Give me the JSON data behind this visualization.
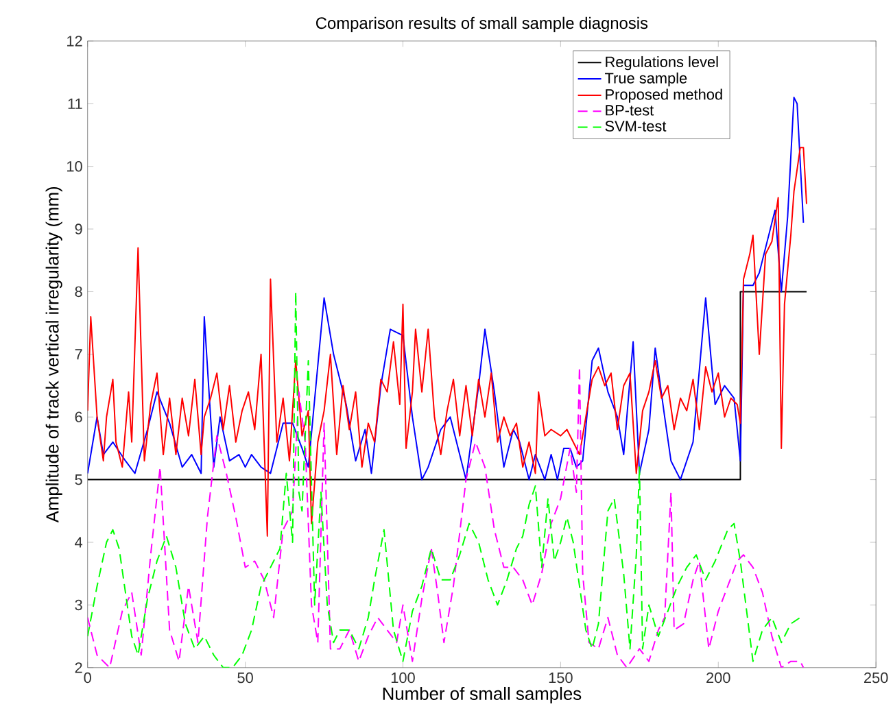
{
  "chart_data": {
    "type": "line",
    "title": "Comparison results of small sample diagnosis",
    "xlabel": "Number of small samples",
    "ylabel": "Amplitude of track vertical irregularity (mm)",
    "xlim": [
      0,
      250
    ],
    "ylim": [
      2,
      12
    ],
    "xticks": [
      0,
      50,
      100,
      150,
      200,
      250
    ],
    "yticks": [
      2,
      3,
      4,
      5,
      6,
      7,
      8,
      9,
      10,
      11,
      12
    ],
    "grid": false,
    "legend": "top right",
    "marker": "none",
    "series": [
      {
        "name": "Regulations level",
        "color": "#000000",
        "line_style": "solid",
        "x": [
          0,
          207,
          207,
          228
        ],
        "values": [
          5,
          5,
          8,
          8
        ]
      },
      {
        "name": "True sample",
        "color": "#0000ff",
        "line_style": "solid",
        "x": [
          0,
          3,
          5,
          8,
          12,
          15,
          19,
          22,
          26,
          30,
          33,
          36,
          37,
          40,
          42,
          45,
          48,
          50,
          52,
          55,
          58,
          62,
          65,
          68,
          70,
          75,
          78,
          82,
          85,
          88,
          90,
          93,
          96,
          100,
          103,
          106,
          108,
          112,
          115,
          118,
          120,
          124,
          126,
          129,
          132,
          135,
          137,
          140,
          142,
          145,
          147,
          149,
          151,
          153,
          155,
          157,
          160,
          162,
          165,
          168,
          170,
          173,
          175,
          178,
          180,
          183,
          185,
          188,
          192,
          196,
          199,
          202,
          205,
          207,
          208,
          211,
          213,
          218,
          220,
          222,
          224,
          225,
          227
        ],
        "values": [
          5.1,
          6.0,
          5.4,
          5.6,
          5.3,
          5.1,
          5.8,
          6.4,
          5.9,
          5.2,
          5.4,
          5.1,
          7.6,
          5.2,
          6.0,
          5.3,
          5.4,
          5.2,
          5.4,
          5.2,
          5.1,
          5.9,
          5.9,
          5.5,
          5.2,
          7.9,
          7.0,
          6.2,
          5.3,
          5.8,
          5.1,
          6.5,
          7.4,
          7.3,
          6.0,
          5.0,
          5.2,
          5.8,
          6.0,
          5.4,
          5.0,
          6.5,
          7.4,
          6.4,
          5.2,
          5.8,
          5.6,
          5.0,
          5.4,
          5.0,
          5.4,
          5.0,
          5.5,
          5.5,
          5.2,
          5.3,
          6.9,
          7.1,
          6.4,
          6.0,
          5.4,
          7.2,
          5.1,
          5.8,
          7.1,
          6.0,
          5.3,
          5.0,
          5.6,
          7.9,
          6.2,
          6.5,
          6.3,
          5.3,
          8.1,
          8.1,
          8.3,
          9.3,
          8.0,
          9.2,
          11.1,
          11.0,
          9.1
        ]
      },
      {
        "name": "Proposed method",
        "color": "#ff0000",
        "line_style": "solid",
        "x": [
          0,
          1,
          3,
          5,
          6,
          8,
          9,
          11,
          13,
          14,
          16,
          18,
          20,
          22,
          24,
          26,
          28,
          30,
          32,
          34,
          36,
          37,
          39,
          41,
          43,
          45,
          47,
          49,
          51,
          53,
          55,
          57,
          58,
          60,
          62,
          64,
          66,
          68,
          70,
          71,
          73,
          75,
          77,
          79,
          81,
          83,
          85,
          87,
          89,
          91,
          93,
          95,
          97,
          99,
          100,
          101,
          103,
          104,
          106,
          108,
          110,
          112,
          114,
          116,
          118,
          120,
          122,
          124,
          126,
          128,
          130,
          132,
          134,
          136,
          138,
          140,
          142,
          143,
          145,
          147,
          150,
          152,
          154,
          156,
          158,
          160,
          162,
          164,
          166,
          168,
          170,
          172,
          174,
          176,
          178,
          180,
          182,
          184,
          186,
          188,
          190,
          192,
          194,
          196,
          198,
          200,
          202,
          204,
          206,
          207,
          208,
          210,
          211,
          213,
          215,
          217,
          219,
          220,
          221,
          223,
          224,
          226,
          227,
          228
        ],
        "values": [
          6.1,
          7.6,
          6.0,
          5.3,
          6.0,
          6.6,
          5.6,
          5.2,
          6.4,
          5.6,
          8.7,
          5.3,
          6.2,
          6.7,
          5.4,
          6.3,
          5.4,
          6.3,
          5.7,
          6.6,
          5.4,
          6.0,
          6.3,
          6.7,
          5.8,
          6.5,
          5.6,
          6.1,
          6.4,
          5.8,
          7.0,
          4.1,
          8.2,
          5.6,
          6.3,
          5.3,
          6.9,
          5.7,
          6.1,
          4.3,
          5.6,
          6.1,
          7.0,
          5.4,
          6.5,
          5.8,
          6.4,
          5.2,
          5.9,
          5.6,
          6.6,
          6.4,
          7.2,
          6.2,
          7.8,
          5.5,
          6.4,
          7.4,
          6.4,
          7.4,
          6.0,
          5.4,
          6.1,
          6.6,
          5.7,
          6.5,
          5.7,
          6.6,
          6.0,
          6.7,
          5.6,
          6.0,
          5.7,
          5.9,
          5.2,
          5.6,
          5.1,
          6.4,
          5.7,
          5.8,
          5.7,
          5.8,
          5.6,
          5.4,
          6.0,
          6.6,
          6.8,
          6.5,
          6.7,
          5.8,
          6.5,
          6.7,
          5.1,
          6.1,
          6.4,
          6.9,
          6.3,
          6.5,
          5.8,
          6.3,
          6.1,
          6.6,
          5.8,
          6.8,
          6.4,
          6.7,
          6.0,
          6.3,
          6.2,
          5.9,
          8.2,
          8.6,
          8.9,
          7.0,
          8.6,
          8.8,
          9.5,
          5.5,
          7.8,
          8.9,
          9.6,
          10.3,
          10.3,
          9.4
        ]
      },
      {
        "name": "BP-test",
        "color": "#ff00ff",
        "line_style": "dashed",
        "x": [
          0,
          3,
          7,
          11,
          14,
          17,
          20,
          23,
          26,
          29,
          32,
          35,
          38,
          41,
          44,
          47,
          50,
          53,
          56,
          59,
          62,
          65,
          67,
          69,
          71,
          73,
          75,
          77,
          80,
          83,
          86,
          89,
          92,
          95,
          98,
          100,
          103,
          106,
          109,
          111,
          113,
          116,
          120,
          123,
          126,
          129,
          132,
          135,
          138,
          141,
          144,
          147,
          150,
          153,
          155,
          156,
          157,
          159,
          162,
          165,
          168,
          171,
          175,
          178,
          181,
          183,
          185,
          186,
          189,
          192,
          194,
          197,
          200,
          203,
          206,
          208,
          211,
          214,
          217,
          220,
          223,
          226,
          227
        ],
        "values": [
          2.8,
          2.2,
          2.0,
          2.9,
          3.2,
          2.2,
          3.8,
          5.2,
          2.6,
          2.1,
          3.3,
          2.4,
          4.4,
          5.7,
          5.1,
          4.4,
          3.6,
          3.7,
          3.4,
          2.8,
          4.2,
          4.5,
          6.4,
          5.6,
          3.0,
          2.4,
          5.9,
          2.3,
          2.3,
          2.6,
          2.1,
          2.5,
          2.8,
          2.6,
          2.4,
          3.0,
          2.1,
          3.1,
          3.9,
          3.2,
          2.4,
          3.3,
          5.0,
          5.6,
          5.2,
          4.2,
          3.6,
          3.6,
          3.4,
          3.0,
          3.5,
          4.3,
          4.7,
          5.5,
          4.8,
          6.8,
          3.5,
          2.4,
          2.3,
          2.8,
          2.2,
          2.0,
          2.3,
          2.1,
          2.6,
          2.8,
          4.8,
          2.6,
          2.7,
          3.4,
          3.7,
          2.3,
          2.9,
          3.3,
          3.7,
          3.8,
          3.6,
          3.2,
          2.5,
          2.0,
          2.1,
          2.1,
          2.0
        ]
      },
      {
        "name": "SVM-test",
        "color": "#00ff00",
        "line_style": "dashed",
        "x": [
          0,
          3,
          6,
          8,
          10,
          12,
          14,
          16,
          19,
          22,
          25,
          28,
          31,
          34,
          37,
          40,
          43,
          46,
          49,
          52,
          55,
          58,
          61,
          63,
          65,
          66,
          67,
          68,
          70,
          72,
          74,
          76,
          78,
          80,
          83,
          86,
          89,
          91,
          94,
          97,
          100,
          103,
          106,
          109,
          112,
          115,
          118,
          121,
          124,
          127,
          130,
          133,
          136,
          138,
          140,
          142,
          144,
          146,
          148,
          150,
          152,
          154,
          156,
          158,
          160,
          162,
          165,
          167,
          170,
          172,
          174,
          175,
          176,
          178,
          181,
          184,
          187,
          190,
          193,
          196,
          199,
          203,
          205,
          207,
          209,
          211,
          214,
          217,
          220,
          223,
          226
        ],
        "values": [
          2.5,
          3.3,
          4.0,
          4.2,
          3.9,
          3.2,
          2.5,
          2.2,
          3.1,
          3.7,
          4.1,
          3.6,
          2.7,
          2.3,
          2.5,
          2.2,
          2.0,
          2.0,
          2.2,
          2.6,
          3.3,
          3.6,
          3.9,
          5.1,
          4.0,
          8.0,
          4.8,
          4.5,
          6.9,
          3.0,
          4.8,
          3.0,
          2.4,
          2.6,
          2.6,
          2.3,
          2.8,
          3.4,
          4.2,
          2.6,
          2.1,
          2.9,
          3.3,
          3.9,
          3.4,
          3.4,
          3.8,
          4.3,
          4.0,
          3.4,
          3.0,
          3.4,
          3.9,
          4.1,
          4.6,
          4.9,
          3.6,
          4.7,
          3.7,
          4.0,
          4.4,
          4.0,
          3.3,
          2.6,
          2.3,
          2.7,
          4.5,
          4.7,
          3.5,
          2.3,
          3.8,
          5.2,
          2.3,
          3.0,
          2.5,
          2.9,
          3.3,
          3.6,
          3.8,
          3.4,
          3.7,
          4.2,
          4.3,
          3.7,
          2.9,
          2.1,
          2.6,
          2.8,
          2.4,
          2.7,
          2.8
        ]
      }
    ]
  }
}
